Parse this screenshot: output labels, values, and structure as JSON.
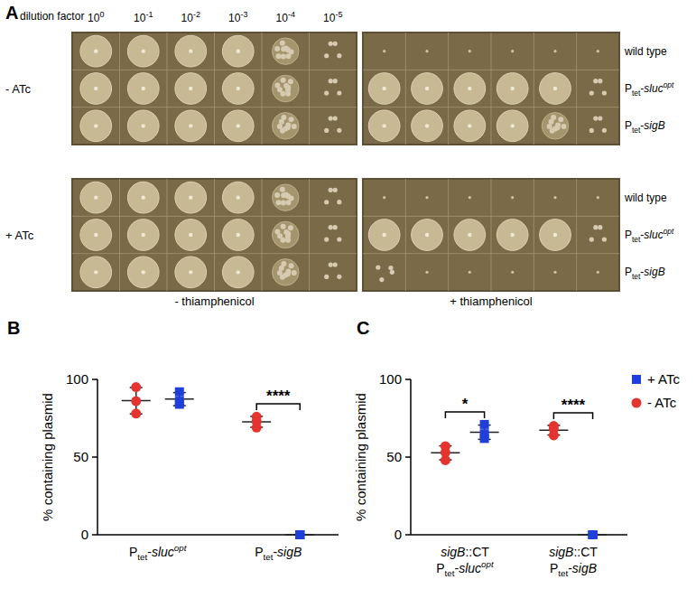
{
  "panel_a": {
    "label": "A",
    "x_title": "dilution factor",
    "base": 10,
    "exponents": [
      0,
      -1,
      -2,
      -3,
      -4,
      -5
    ],
    "strains": [
      "wild type",
      "Ptet-slucopt",
      "Ptet-sigB"
    ],
    "rows": [
      "- ATc",
      "+ ATc"
    ],
    "columns": [
      "- thiamphenicol",
      "+ thiamphenicol"
    ],
    "growth": [
      [
        [
          [
            3,
            3,
            3,
            3,
            2,
            1
          ],
          [
            3,
            3,
            3,
            3,
            2,
            1
          ],
          [
            3,
            3,
            3,
            3,
            2,
            1
          ]
        ],
        [
          [
            0,
            0,
            0,
            0,
            0,
            0
          ],
          [
            3,
            3,
            3,
            3,
            3,
            1
          ],
          [
            3,
            3,
            3,
            3,
            2,
            1
          ]
        ]
      ],
      [
        [
          [
            3,
            3,
            3,
            3,
            2,
            1
          ],
          [
            3,
            3,
            3,
            3,
            2,
            1
          ],
          [
            3,
            3,
            3,
            3,
            2,
            1
          ]
        ],
        [
          [
            0,
            0,
            0,
            0,
            0,
            0
          ],
          [
            3,
            3,
            3,
            3,
            3,
            1
          ],
          [
            1,
            0,
            0,
            0,
            0,
            0
          ]
        ]
      ]
    ]
  },
  "chart_data": [
    {
      "type": "dot",
      "label": "B",
      "y_label": "% containing plasmid",
      "categories": [
        "Ptet-slucopt",
        "Ptet-sigB"
      ],
      "ylim": [
        0,
        100
      ],
      "yticks": [
        0,
        50,
        100
      ],
      "series": [
        {
          "name": "- ATc",
          "color": "#e3342f",
          "marker": "circle",
          "values": [
            [
              95,
              86,
              78
            ],
            [
              76,
              73,
              69
            ]
          ],
          "mean": [
            86.3,
            72.7
          ],
          "error": [
            8.5,
            3.5
          ]
        },
        {
          "name": "+ ATc",
          "color": "#1f3fd8",
          "marker": "square",
          "values": [
            [
              92,
              86,
              84
            ],
            [
              0,
              0,
              0
            ]
          ],
          "mean": [
            87.3,
            0
          ],
          "error": [
            4.2,
            0
          ]
        }
      ],
      "annotations": [
        {
          "text": "****",
          "category": 1
        }
      ]
    },
    {
      "type": "dot",
      "label": "C",
      "y_label": "% containing plasmid",
      "categories": [
        "sigB::CT Ptet-slucopt",
        "sigB::CT Ptet-sigB"
      ],
      "ylim": [
        0,
        100
      ],
      "yticks": [
        0,
        50,
        100
      ],
      "legend": "right",
      "series": [
        {
          "name": "- ATc",
          "color": "#e3342f",
          "marker": "circle",
          "values": [
            [
              57,
              53,
              48
            ],
            [
              70,
              68,
              64
            ]
          ],
          "mean": [
            52.7,
            67.3
          ],
          "error": [
            4.5,
            3.1
          ]
        },
        {
          "name": "+ ATc",
          "color": "#1f3fd8",
          "marker": "square",
          "values": [
            [
              71,
              65,
              62
            ],
            [
              0,
              0,
              0
            ]
          ],
          "mean": [
            66,
            0
          ],
          "error": [
            4.6,
            0
          ]
        }
      ],
      "annotations": [
        {
          "text": "*",
          "category": 0
        },
        {
          "text": "****",
          "category": 1
        }
      ]
    }
  ]
}
